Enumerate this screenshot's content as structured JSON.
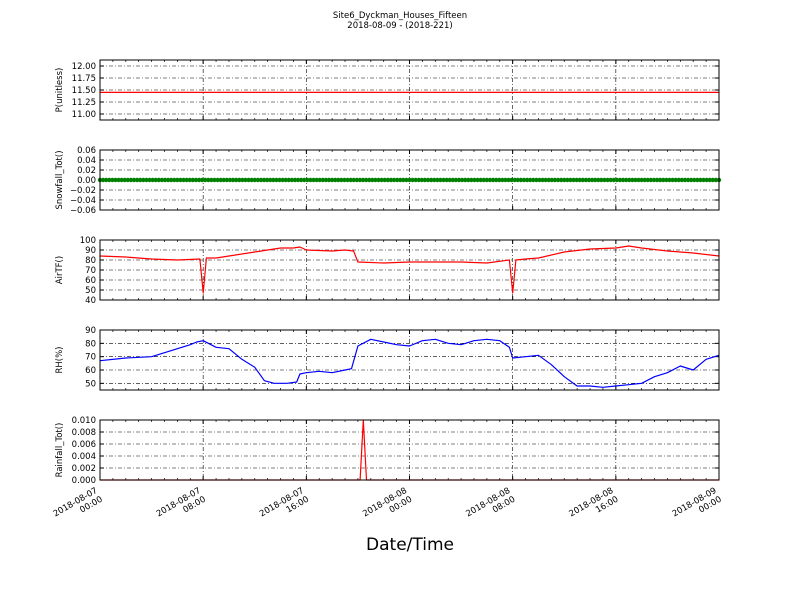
{
  "figure": {
    "title": "Site6_Dyckman_Houses_Fifteen",
    "subtitle": "2018-08-09 - (2018-221)",
    "xlabel": "Date/Time"
  },
  "chart_data": [
    {
      "type": "line",
      "ylabel": "P(unitless)",
      "ylim": [
        10.875,
        12.125
      ],
      "yticks": [
        11.0,
        11.25,
        11.5,
        11.75,
        12.0
      ],
      "ytick_labels": [
        "11.00",
        "11.25",
        "11.50",
        "11.75",
        "12.00"
      ],
      "xlim": [
        "2018-08-07 00:00",
        "2018-08-09 00:00"
      ],
      "grid": true,
      "series": [
        {
          "color": "#ff0000",
          "marker": "none",
          "x": [
            "2018-08-07 00:00",
            "2018-08-09 00:00"
          ],
          "values": [
            11.45,
            11.45
          ]
        }
      ]
    },
    {
      "type": "scatter",
      "ylabel": "Snowfall_Tot()",
      "ylim": [
        -0.06,
        0.06
      ],
      "yticks": [
        -0.06,
        -0.04,
        -0.02,
        0.0,
        0.02,
        0.04,
        0.06
      ],
      "ytick_labels": [
        "−0.06",
        "−0.04",
        "−0.02",
        "0.00",
        "0.02",
        "0.04",
        "0.06"
      ],
      "xlim": [
        "2018-08-07 00:00",
        "2018-08-09 00:00"
      ],
      "grid": true,
      "series": [
        {
          "color": "#008000",
          "marker": "dot",
          "x": [
            "2018-08-07 00:00",
            "2018-08-09 00:00"
          ],
          "values": [
            0.0,
            0.0
          ]
        }
      ]
    },
    {
      "type": "line",
      "ylabel": "AirTF()",
      "ylim": [
        40,
        100
      ],
      "yticks": [
        40,
        50,
        60,
        70,
        80,
        90,
        100
      ],
      "ytick_labels": [
        "40",
        "50",
        "60",
        "70",
        "80",
        "90",
        "100"
      ],
      "xlim": [
        "2018-08-07 00:00",
        "2018-08-09 00:00"
      ],
      "grid": true,
      "series": [
        {
          "color": "#ff0000",
          "marker": "none",
          "x": [
            "2018-08-07 00:00",
            "2018-08-07 02:00",
            "2018-08-07 04:00",
            "2018-08-07 06:00",
            "2018-08-07 07:45",
            "2018-08-07 08:00",
            "2018-08-07 08:15",
            "2018-08-07 09:00",
            "2018-08-07 10:00",
            "2018-08-07 12:00",
            "2018-08-07 13:00",
            "2018-08-07 14:00",
            "2018-08-07 15:00",
            "2018-08-07 15:30",
            "2018-08-07 16:00",
            "2018-08-07 18:00",
            "2018-08-07 19:00",
            "2018-08-07 19:40",
            "2018-08-07 20:00",
            "2018-08-07 22:00",
            "2018-08-08 00:00",
            "2018-08-08 02:00",
            "2018-08-08 04:00",
            "2018-08-08 06:00",
            "2018-08-08 07:45",
            "2018-08-08 08:00",
            "2018-08-08 08:15",
            "2018-08-08 09:00",
            "2018-08-08 10:00",
            "2018-08-08 12:00",
            "2018-08-08 14:00",
            "2018-08-08 16:00",
            "2018-08-08 17:00",
            "2018-08-08 18:00",
            "2018-08-08 20:00",
            "2018-08-08 22:00",
            "2018-08-09 00:00"
          ],
          "values": [
            84,
            83,
            81,
            80,
            81,
            47,
            82,
            82,
            84,
            88,
            90,
            92,
            92,
            93,
            90,
            89,
            90,
            89,
            78,
            77,
            78,
            78,
            78,
            77,
            80,
            47,
            80,
            81,
            82,
            88,
            91,
            92,
            94,
            92,
            89,
            87,
            84
          ]
        }
      ]
    },
    {
      "type": "line",
      "ylabel": "RH(%)",
      "ylim": [
        45,
        90
      ],
      "yticks": [
        50,
        60,
        70,
        80,
        90
      ],
      "ytick_labels": [
        "50",
        "60",
        "70",
        "80",
        "90"
      ],
      "xlim": [
        "2018-08-07 00:00",
        "2018-08-09 00:00"
      ],
      "grid": true,
      "series": [
        {
          "color": "#0000ff",
          "marker": "none",
          "x": [
            "2018-08-07 00:00",
            "2018-08-07 02:00",
            "2018-08-07 04:00",
            "2018-08-07 05:00",
            "2018-08-07 06:00",
            "2018-08-07 07:00",
            "2018-08-07 07:30",
            "2018-08-07 08:00",
            "2018-08-07 09:00",
            "2018-08-07 10:00",
            "2018-08-07 11:00",
            "2018-08-07 12:00",
            "2018-08-07 12:45",
            "2018-08-07 13:30",
            "2018-08-07 14:30",
            "2018-08-07 15:15",
            "2018-08-07 15:30",
            "2018-08-07 16:00",
            "2018-08-07 17:00",
            "2018-08-07 18:00",
            "2018-08-07 19:00",
            "2018-08-07 19:30",
            "2018-08-07 20:00",
            "2018-08-07 21:00",
            "2018-08-07 22:00",
            "2018-08-07 23:00",
            "2018-08-08 00:00",
            "2018-08-08 01:00",
            "2018-08-08 02:00",
            "2018-08-08 03:00",
            "2018-08-08 04:00",
            "2018-08-08 05:00",
            "2018-08-08 06:00",
            "2018-08-08 07:00",
            "2018-08-08 07:45",
            "2018-08-08 08:00",
            "2018-08-08 09:00",
            "2018-08-08 10:00",
            "2018-08-08 11:00",
            "2018-08-08 12:00",
            "2018-08-08 13:00",
            "2018-08-08 14:00",
            "2018-08-08 15:00",
            "2018-08-08 16:00",
            "2018-08-08 17:00",
            "2018-08-08 18:00",
            "2018-08-08 19:00",
            "2018-08-08 20:00",
            "2018-08-08 21:00",
            "2018-08-08 22:00",
            "2018-08-08 23:00",
            "2018-08-09 00:00"
          ],
          "values": [
            67,
            69,
            70,
            73,
            76,
            79,
            81,
            82,
            77,
            76,
            68,
            62,
            52,
            50,
            50,
            51,
            57,
            58,
            59,
            58,
            60,
            61,
            78,
            83,
            81,
            79,
            78,
            82,
            83,
            80,
            79,
            82,
            83,
            82,
            77,
            69,
            70,
            71,
            64,
            55,
            48,
            48,
            47,
            48,
            49,
            50,
            55,
            58,
            63,
            60,
            68,
            71
          ]
        }
      ]
    },
    {
      "type": "line",
      "ylabel": "Rainfall_Tot()",
      "ylim": [
        0.0,
        0.01
      ],
      "yticks": [
        0.0,
        0.002,
        0.004,
        0.006,
        0.008,
        0.01
      ],
      "ytick_labels": [
        "0.000",
        "0.002",
        "0.004",
        "0.006",
        "0.008",
        "0.010"
      ],
      "xlim": [
        "2018-08-07 00:00",
        "2018-08-09 00:00"
      ],
      "xtick_labels": [
        [
          "2018-08-07",
          "00:00"
        ],
        [
          "2018-08-07",
          "08:00"
        ],
        [
          "2018-08-07",
          "16:00"
        ],
        [
          "2018-08-08",
          "00:00"
        ],
        [
          "2018-08-08",
          "08:00"
        ],
        [
          "2018-08-08",
          "16:00"
        ],
        [
          "2018-08-09",
          "00:00"
        ]
      ],
      "grid": true,
      "series": [
        {
          "color": "#ff0000",
          "marker": "none",
          "x": [
            "2018-08-07 00:00",
            "2018-08-07 20:10",
            "2018-08-07 20:25",
            "2018-08-07 20:40",
            "2018-08-09 00:00"
          ],
          "values": [
            0.0,
            0.0,
            0.01,
            0.0,
            0.0
          ]
        }
      ]
    }
  ]
}
